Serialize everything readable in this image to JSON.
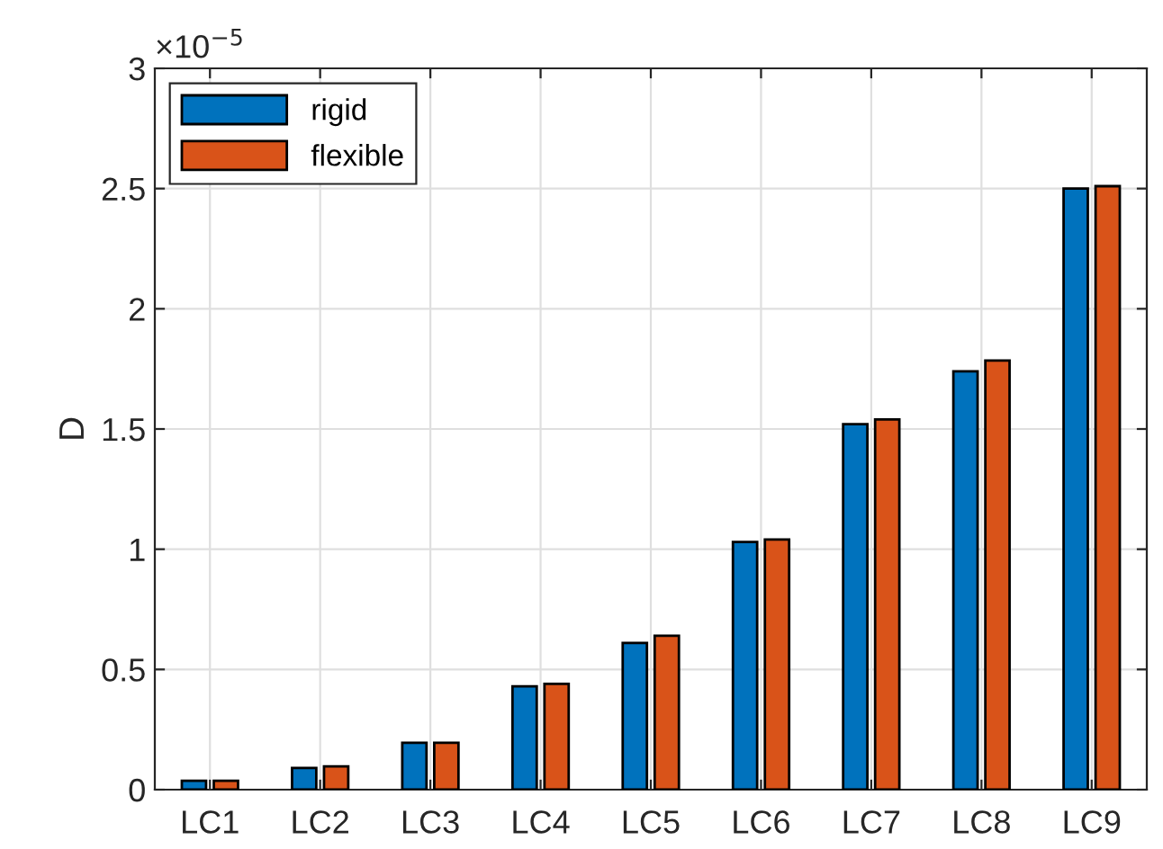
{
  "chart_data": {
    "type": "bar",
    "ylabel": "D",
    "categories": [
      "LC1",
      "LC2",
      "LC3",
      "LC4",
      "LC5",
      "LC6",
      "LC7",
      "LC8",
      "LC9"
    ],
    "series": [
      {
        "name": "rigid",
        "color": "#0072bd",
        "values": [
          0.037,
          0.09,
          0.195,
          0.43,
          0.61,
          1.03,
          1.52,
          1.74,
          2.5
        ]
      },
      {
        "name": "flexible",
        "color": "#d95319",
        "values": [
          0.037,
          0.097,
          0.195,
          0.44,
          0.64,
          1.04,
          1.54,
          1.785,
          2.51
        ]
      }
    ],
    "ylim": [
      0,
      3
    ],
    "yticks": [
      0,
      0.5,
      1,
      1.5,
      2,
      2.5,
      3
    ],
    "annotations": [
      "×10$^{−5}$"
    ],
    "grid": true,
    "legend": "top left"
  }
}
